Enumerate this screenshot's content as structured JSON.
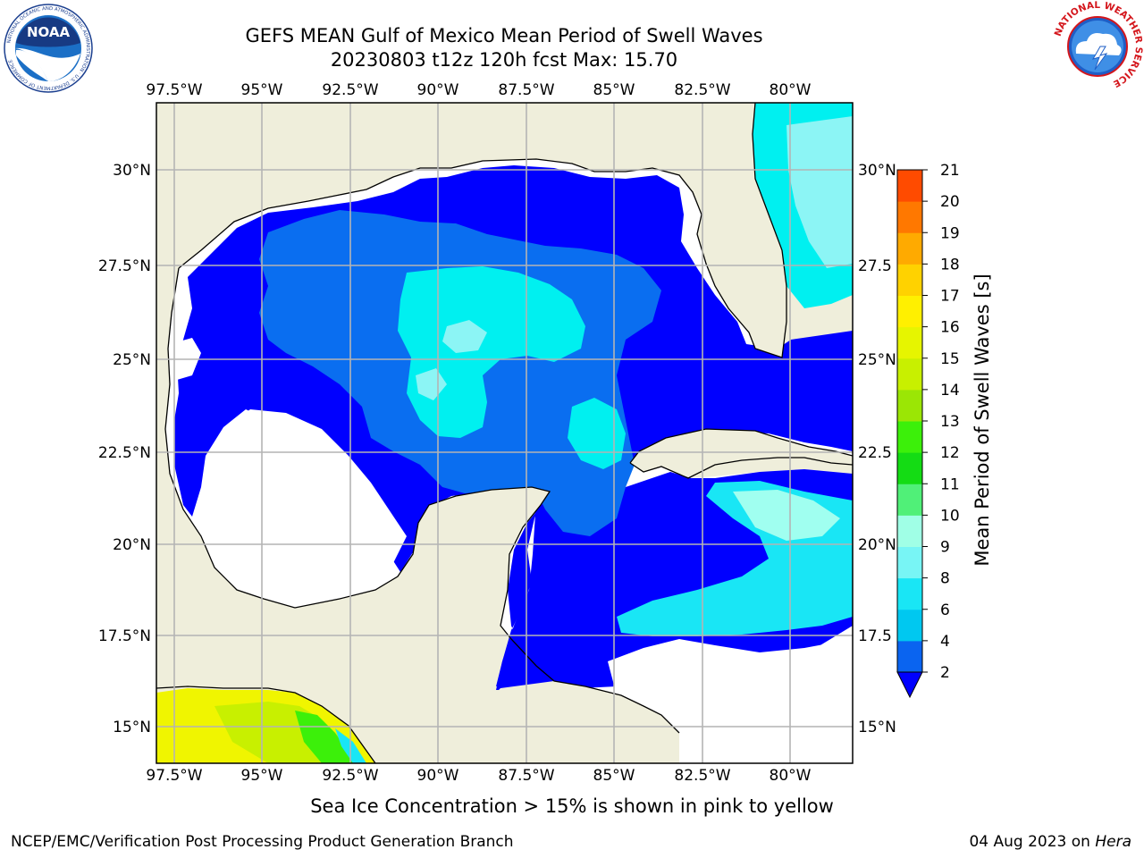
{
  "title_line1": "GEFS MEAN Gulf of Mexico Mean Period of Swell Waves",
  "title_line2": "20230803 t12z 120h fcst   Max: 15.70",
  "noaa_logo_text": "NOAA",
  "noaa_ring_text": "NATIONAL OCEANIC AND ATMOSPHERIC ADMINISTRATION · U.S. DEPARTMENT OF COMMERCE",
  "nws_ring_text": "NATIONAL WEATHER SERVICE",
  "lon_labels": [
    "97.5°W",
    "95°W",
    "92.5°W",
    "90°W",
    "87.5°W",
    "85°W",
    "82.5°W",
    "80°W"
  ],
  "lat_labels_left": [
    "30°N",
    "27.5°N",
    "25°N",
    "22.5°N",
    "20°N",
    "17.5°N",
    "15°N"
  ],
  "lat_labels_right": [
    "30°N",
    "27.5",
    "25°N",
    "22.5",
    "20°N",
    "17.5",
    "15°N"
  ],
  "colorbar": {
    "label": "Mean Period of Swell Waves [s]",
    "ticks": [
      "2",
      "4",
      "6",
      "8",
      "9",
      "10",
      "11",
      "12",
      "13",
      "14",
      "15",
      "16",
      "17",
      "18",
      "19",
      "20",
      "21"
    ],
    "colors": [
      "#0a64f0",
      "#00c8f0",
      "#19e6f5",
      "#78f5f5",
      "#a0ffe6",
      "#50f078",
      "#14dc14",
      "#3cf00a",
      "#9be605",
      "#c8f000",
      "#e6f500",
      "#fff000",
      "#ffd200",
      "#ffaa00",
      "#ff7800",
      "#ff4b00",
      "#ff1e00",
      "#ff0000"
    ],
    "under_color": "#0000ff"
  },
  "colors": {
    "land": "#efeedb",
    "grid": "#b4b4b4",
    "deep_blue": "#0000ff",
    "mid_blue": "#0a6ef0",
    "cyan": "#00f0f0",
    "light_cyan": "#8cf5f5",
    "yellow": "#f0f500"
  },
  "sea_ice_note": "Sea Ice Concentration > 15% is shown in pink to yellow",
  "footer_left": "NCEP/EMC/Verification Post Processing Product Generation Branch",
  "footer_date": "04 Aug 2023 on ",
  "footer_host": "Hera"
}
